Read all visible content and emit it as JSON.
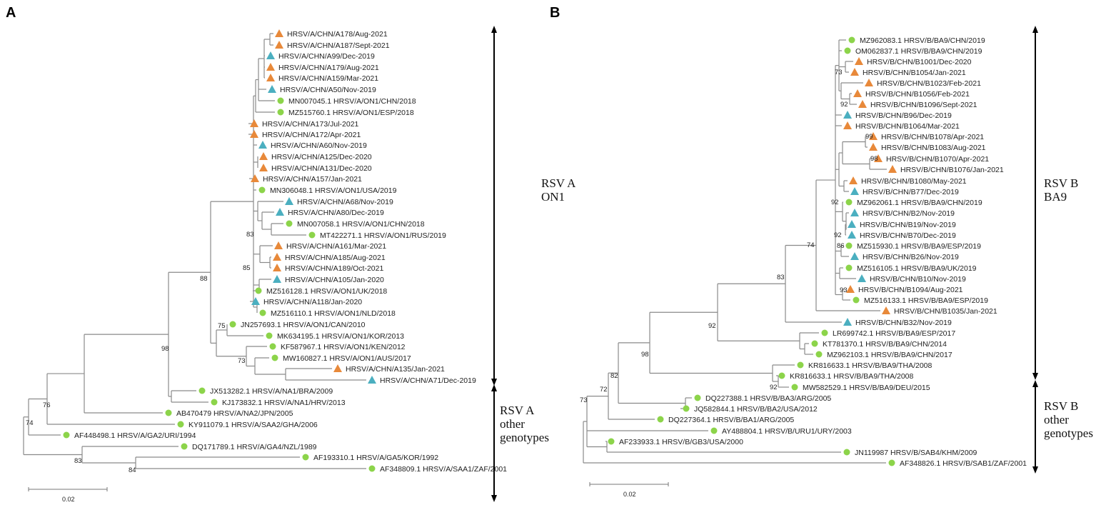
{
  "colors": {
    "recent": "#E8893A",
    "older": "#4BAFC0",
    "reference": "#8CD44A"
  },
  "panels": [
    {
      "letter": "A",
      "clades": [
        {
          "line1": "RSV A",
          "line2": "ON1"
        },
        {
          "line1": "RSV A",
          "line2": "other",
          "line3": "genotypes"
        }
      ],
      "scale": "0.02",
      "bootstrap": [
        "88",
        "98",
        "76",
        "74",
        "83",
        "84",
        "83",
        "85",
        "75",
        "73"
      ],
      "leaves": [
        {
          "label": "HRSV/A/CHN/A178/Aug-2021",
          "type": "recent"
        },
        {
          "label": "HRSV/A/CHN/A187/Sept-2021",
          "type": "recent"
        },
        {
          "label": "HRSV/A/CHN/A99/Dec-2019",
          "type": "older"
        },
        {
          "label": "HRSV/A/CHN/A179/Aug-2021",
          "type": "recent"
        },
        {
          "label": "HRSV/A/CHN/A159/Mar-2021",
          "type": "recent"
        },
        {
          "label": "HRSV/A/CHN/A50/Nov-2019",
          "type": "older"
        },
        {
          "label": "MN007045.1 HRSV/A/ON1/CHN/2018",
          "type": "reference"
        },
        {
          "label": "MZ515760.1 HRSV/A/ON1/ESP/2018",
          "type": "reference"
        },
        {
          "label": "HRSV/A/CHN/A173/Jul-2021",
          "type": "recent"
        },
        {
          "label": "HRSV/A/CHN/A172/Apr-2021",
          "type": "recent"
        },
        {
          "label": "HRSV/A/CHN/A60/Nov-2019",
          "type": "older"
        },
        {
          "label": "HRSV/A/CHN/A125/Dec-2020",
          "type": "recent"
        },
        {
          "label": "HRSV/A/CHN/A131/Dec-2020",
          "type": "recent"
        },
        {
          "label": "HRSV/A/CHN/A157/Jan-2021",
          "type": "recent"
        },
        {
          "label": "MN306048.1 HRSV/A/ON1/USA/2019",
          "type": "reference"
        },
        {
          "label": "HRSV/A/CHN/A68/Nov-2019",
          "type": "older"
        },
        {
          "label": "HRSV/A/CHN/A80/Dec-2019",
          "type": "older"
        },
        {
          "label": "MN007058.1 HRSV/A/ON1/CHN/2018",
          "type": "reference"
        },
        {
          "label": "MT422271.1 HRSV/A/ON1/RUS/2019",
          "type": "reference"
        },
        {
          "label": "HRSV/A/CHN/A161/Mar-2021",
          "type": "recent"
        },
        {
          "label": "HRSV/A/CHN/A185/Aug-2021",
          "type": "recent"
        },
        {
          "label": "HRSV/A/CHN/A189/Oct-2021",
          "type": "recent"
        },
        {
          "label": "HRSV/A/CHN/A105/Jan-2020",
          "type": "older"
        },
        {
          "label": "MZ516128.1 HRSV/A/ON1/UK/2018",
          "type": "reference"
        },
        {
          "label": "HRSV/A/CHN/A118/Jan-2020",
          "type": "older"
        },
        {
          "label": "MZ516110.1 HRSV/A/ON1/NLD/2018",
          "type": "reference"
        },
        {
          "label": "JN257693.1 HRSV/A/ON1/CAN/2010",
          "type": "reference"
        },
        {
          "label": "MK634195.1 HRSV/A/ON1/KOR/2013",
          "type": "reference"
        },
        {
          "label": "KF587967.1 HRSV/A/ON1/KEN/2012",
          "type": "reference"
        },
        {
          "label": "MW160827.1 HRSV/A/ON1/AUS/2017",
          "type": "reference"
        },
        {
          "label": "HRSV/A/CHN/A135/Jan-2021",
          "type": "recent"
        },
        {
          "label": "HRSV/A/CHN/A71/Dec-2019",
          "type": "older"
        },
        {
          "label": "JX513282.1 HRSV/A/NA1/BRA/2009",
          "type": "reference"
        },
        {
          "label": "KJ173832.1 HRSV/A/NA1/HRV/2013",
          "type": "reference"
        },
        {
          "label": "AB470479 HRSV/A/NA2/JPN/2005",
          "type": "reference"
        },
        {
          "label": "KY911079.1 HRSV/A/SAA2/GHA/2006",
          "type": "reference"
        },
        {
          "label": "AF448498.1 HRSV/A/GA2/URI/1994",
          "type": "reference"
        },
        {
          "label": "DQ171789.1 HRSV/A/GA4/NZL/1989",
          "type": "reference"
        },
        {
          "label": "AF193310.1 HRSV/A/GA5/KOR/1992",
          "type": "reference"
        },
        {
          "label": "AF348809.1 HRSV/A/SAA1/ZAF/2001",
          "type": "reference"
        }
      ]
    },
    {
      "letter": "B",
      "clades": [
        {
          "line1": "RSV B",
          "line2": "BA9"
        },
        {
          "line1": "RSV B",
          "line2": "other",
          "line3": "genotypes"
        }
      ],
      "scale": "0.02",
      "bootstrap": [
        "73",
        "92",
        "99",
        "98",
        "92",
        "92",
        "86",
        "93",
        "74",
        "83",
        "92",
        "98",
        "82",
        "72",
        "73",
        "92"
      ],
      "leaves": [
        {
          "label": "MZ962083.1 HRSV/B/BA9/CHN/2019",
          "type": "reference"
        },
        {
          "label": "OM062837.1 HRSV/B/BA9/CHN/2019",
          "type": "reference"
        },
        {
          "label": "HRSV/B/CHN/B1001/Dec-2020",
          "type": "recent"
        },
        {
          "label": "HRSV/B/CHN/B1054/Jan-2021",
          "type": "recent"
        },
        {
          "label": "HRSV/B/CHN/B1023/Feb-2021",
          "type": "recent"
        },
        {
          "label": "HRSV/B/CHN/B1056/Feb-2021",
          "type": "recent"
        },
        {
          "label": "HRSV/B/CHN/B1096/Sept-2021",
          "type": "recent"
        },
        {
          "label": "HRSV/B/CHN/B96/Dec-2019",
          "type": "older"
        },
        {
          "label": "HRSV/B/CHN/B1064/Mar-2021",
          "type": "recent"
        },
        {
          "label": "HRSV/B/CHN/B1078/Apr-2021",
          "type": "recent"
        },
        {
          "label": "HRSV/B/CHN/B1083/Aug-2021",
          "type": "recent"
        },
        {
          "label": "HRSV/B/CHN/B1070/Apr-2021",
          "type": "recent"
        },
        {
          "label": "HRSV/B/CHN/B1076/Jan-2021",
          "type": "recent"
        },
        {
          "label": "HRSV/B/CHN/B1080/May-2021",
          "type": "recent"
        },
        {
          "label": "HRSV/B/CHN/B77/Dec-2019",
          "type": "older"
        },
        {
          "label": "MZ962061.1 HRSV/B/BA9/CHN/2019",
          "type": "reference"
        },
        {
          "label": "HRSV/B/CHN/B2/Nov-2019",
          "type": "older"
        },
        {
          "label": "HRSV/B/CHN/B19/Nov-2019",
          "type": "older"
        },
        {
          "label": "HRSV/B/CHN/B70/Dec-2019",
          "type": "older"
        },
        {
          "label": "MZ515930.1 HRSV/B/BA9/ESP/2019",
          "type": "reference"
        },
        {
          "label": "HRSV/B/CHN/B26/Nov-2019",
          "type": "older"
        },
        {
          "label": "MZ516105.1 HRSV/B/BA9/UK/2019",
          "type": "reference"
        },
        {
          "label": "HRSV/B/CHN/B10/Nov-2019",
          "type": "older"
        },
        {
          "label": "HRSV/B/CHN/B1094/Aug-2021",
          "type": "recent"
        },
        {
          "label": "MZ516133.1 HRSV/B/BA9/ESP/2019",
          "type": "reference"
        },
        {
          "label": "HRSV/B/CHN/B1035/Jan-2021",
          "type": "recent"
        },
        {
          "label": "HRSV/B/CHN/B32/Nov-2019",
          "type": "older"
        },
        {
          "label": "LR699742.1 HRSV/B/BA9/ESP/2017",
          "type": "reference"
        },
        {
          "label": "KT781370.1 HRSV/B/BA9/CHN/2014",
          "type": "reference"
        },
        {
          "label": "MZ962103.1 HRSV/B/BA9/CHN/2017",
          "type": "reference"
        },
        {
          "label": "KR816633.1 HRSV/B/BA9/THA/2008",
          "type": "reference"
        },
        {
          "label": "KR816633.1 HRSV/B/BA9/THA/2008",
          "type": "reference"
        },
        {
          "label": "MW582529.1 HRSV/B/BA9/DEU/2015",
          "type": "reference"
        },
        {
          "label": "DQ227388.1 HRSV/B/BA3/ARG/2005",
          "type": "reference"
        },
        {
          "label": "JQ582844.1 HRSV/B/BA2/USA/2012",
          "type": "reference"
        },
        {
          "label": "DQ227364.1 HRSV/B/BA1/ARG/2005",
          "type": "reference"
        },
        {
          "label": "AY488804.1 HRSV/B/URU1/URY/2003",
          "type": "reference"
        },
        {
          "label": "AF233933.1 HRSV/B/GB3/USA/2000",
          "type": "reference"
        },
        {
          "label": "JN119987 HRSV/B/SAB4/KHM/2009",
          "type": "reference"
        },
        {
          "label": "AF348826.1 HRSV/B/SAB1/ZAF/2001",
          "type": "reference"
        }
      ]
    }
  ]
}
